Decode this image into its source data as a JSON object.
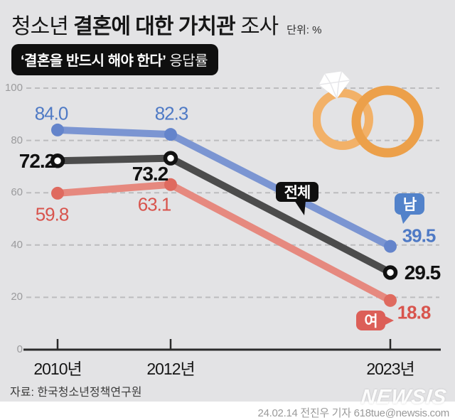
{
  "header": {
    "title_prefix": "청소년 ",
    "title_bold": "결혼에 대한 가치관",
    "title_suffix": " 조사",
    "unit_label": "단위: %",
    "badge_bold": "‘결혼을 반드시 해야 한다’",
    "badge_regular": " 응답률"
  },
  "chart_data": {
    "type": "line",
    "title": "청소년 결혼에 대한 가치관 조사",
    "subtitle": "‘결혼을 반드시 해야 한다’ 응답률",
    "unit": "%",
    "categories": [
      "2010년",
      "2012년",
      "2023년"
    ],
    "series": [
      {
        "name": "남",
        "values": [
          84.0,
          82.3,
          39.5
        ],
        "line_color": "#7b95d2",
        "dot_color": "#6484cb",
        "label_color": "#4f7ac5",
        "badge_color": "#5282ca",
        "marker": "dot"
      },
      {
        "name": "전체",
        "values": [
          72.2,
          73.2,
          29.5
        ],
        "line_color": "#4c4c4c",
        "dot_color": "#111111",
        "label_color": "#111111",
        "badge_color": "#0f0f0f",
        "marker": "open"
      },
      {
        "name": "여",
        "values": [
          59.8,
          63.1,
          18.8
        ],
        "line_color": "#e6897f",
        "dot_color": "#df6a5f",
        "label_color": "#d8544d",
        "badge_color": "#dc5f58",
        "marker": "dot"
      }
    ],
    "yticks": [
      0,
      20,
      40,
      60,
      80,
      100
    ],
    "ylim": [
      0,
      100
    ],
    "grid": "horizontal-dashed",
    "legend_position": "inline-bubbles-on-lines"
  },
  "decor": {
    "rings_icon": "wedding-rings-with-diamond",
    "ring_light_color": "#f2b168",
    "ring_dark_color": "#eca04a"
  },
  "colors": {
    "background": "#e3e3e5",
    "axis": "#2b2b2b",
    "grid": "#bcbcbe",
    "ytick_label": "#9b9b9d",
    "xtick_label": "#161616"
  },
  "footer": {
    "source": "자료: 한국청소년정책연구원",
    "credit": "24.02.14 전진우 기자 618tue@newsis.com",
    "watermark": "NEWSIS"
  }
}
